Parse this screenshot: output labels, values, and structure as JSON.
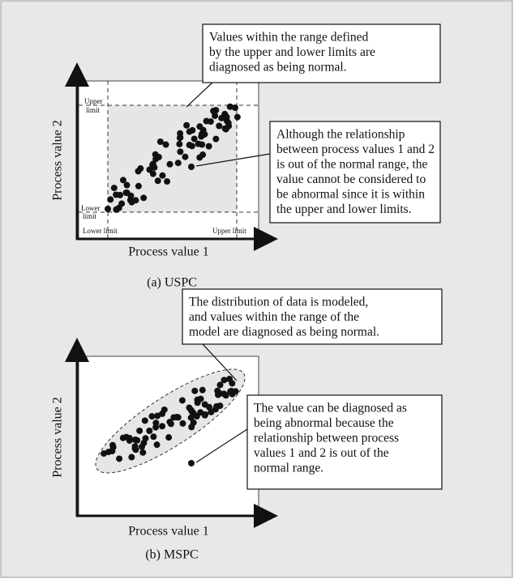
{
  "panels": [
    {
      "y_label": "Process value 2",
      "x_label": "Process value 1",
      "caption": "(a) USPC",
      "upper_limit_y": [
        "Upper",
        "limit"
      ],
      "lower_limit_y": [
        "Lower",
        "limit"
      ],
      "lower_limit_x": "Lower limit",
      "upper_limit_x": "Upper limit",
      "callouts": [
        [
          "Values within the range defined",
          "by the upper and lower limits are",
          "diagnosed as being normal."
        ],
        [
          "Although the relationship",
          "between process values 1 and 2",
          "is out of the normal range, the",
          "value cannot be considered to",
          "be abnormal since it is within",
          "the upper and lower limits."
        ]
      ]
    },
    {
      "y_label": "Process value 2",
      "x_label": "Process value 1",
      "caption": "(b) MSPC",
      "callouts": [
        [
          "The distribution of data is modeled,",
          "and values within the range of the",
          "model are diagnosed as being normal."
        ],
        [
          "The value can be diagnosed as",
          "being abnormal because the",
          "relationship between process",
          "values 1 and 2 is out of the",
          "normal range."
        ]
      ]
    }
  ]
}
